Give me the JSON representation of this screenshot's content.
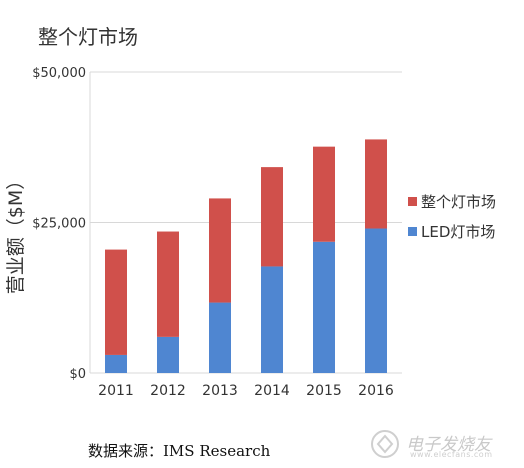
{
  "chart_data": {
    "type": "bar",
    "stacked": true,
    "title": "整个灯市场",
    "xlabel": "",
    "ylabel": "营业额（$M）",
    "categories": [
      "2011",
      "2012",
      "2013",
      "2014",
      "2015",
      "2016"
    ],
    "series": [
      {
        "name": "LED灯市场",
        "color": "#4f86d1",
        "values": [
          3000,
          6000,
          11700,
          17700,
          21800,
          24000
        ]
      },
      {
        "name": "整个灯市场",
        "color": "#d0504b",
        "values": [
          17500,
          17500,
          17300,
          16500,
          15800,
          14800
        ]
      }
    ],
    "ylim": [
      0,
      50000
    ],
    "yticks": [
      "$0",
      "$25,000",
      "$50,000"
    ],
    "ytick_values": [
      0,
      25000,
      50000
    ],
    "grid": true,
    "legend": "right"
  },
  "source_text": "数据来源：IMS Research",
  "watermark": {
    "text": "电子发烧友",
    "sub": "www.elecfans.com"
  }
}
